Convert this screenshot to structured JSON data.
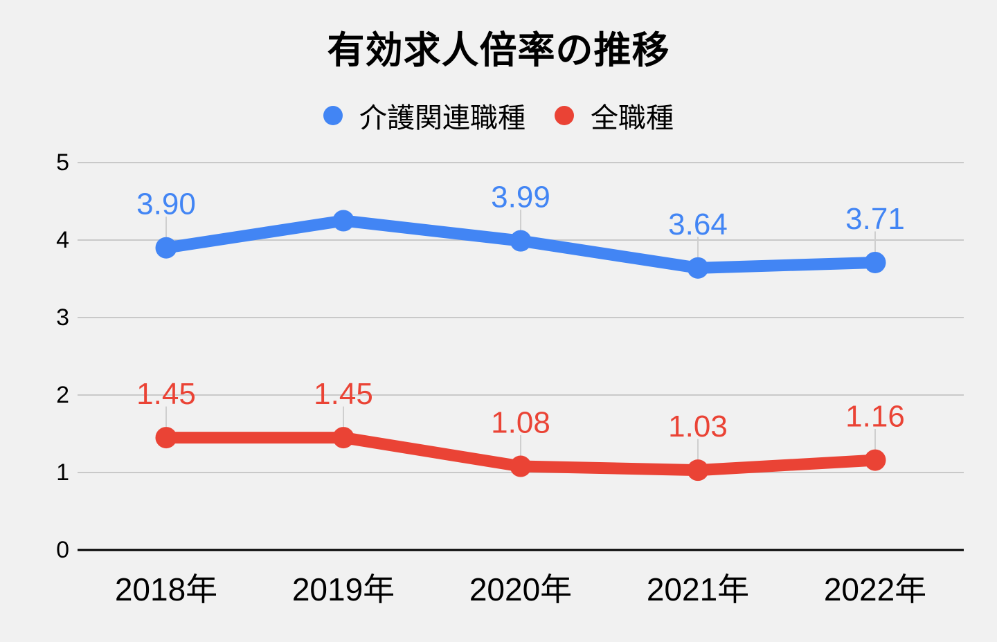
{
  "page": {
    "background": "#f1f1f1",
    "text_color": "#000000"
  },
  "chart_data": {
    "type": "line",
    "title": "有効求人倍率の推移",
    "categories": [
      "2018年",
      "2019年",
      "2020年",
      "2021年",
      "2022年"
    ],
    "xlabel": "",
    "ylabel": "",
    "ylim": [
      0,
      5
    ],
    "yticks": [
      0,
      1,
      2,
      3,
      4,
      5
    ],
    "grid": true,
    "legend_position": "top",
    "series": [
      {
        "name": "介護関連職種",
        "color": "#4285f4",
        "values": [
          3.9,
          4.25,
          3.99,
          3.64,
          3.71
        ],
        "point_labels": [
          "3.90",
          "",
          "3.99",
          "3.64",
          "3.71"
        ]
      },
      {
        "name": "全職種",
        "color": "#ea4335",
        "values": [
          1.45,
          1.45,
          1.08,
          1.03,
          1.16
        ],
        "point_labels": [
          "1.45",
          "1.45",
          "1.08",
          "1.03",
          "1.16"
        ]
      }
    ],
    "axis_line_color": "#000000",
    "gridline_color": "#c9c9c9",
    "leader_line_color": "#cfcfcf"
  }
}
